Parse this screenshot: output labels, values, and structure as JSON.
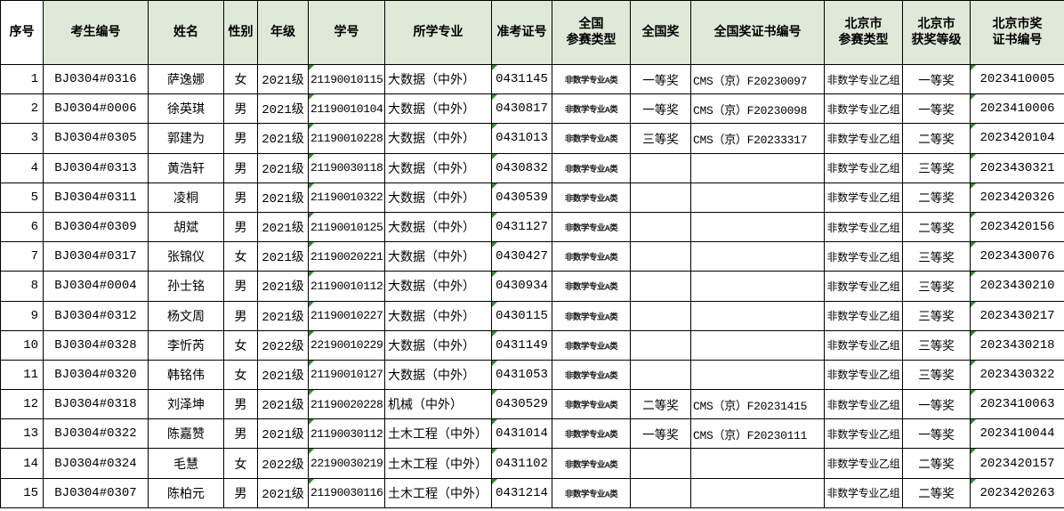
{
  "table": {
    "header_bg": "#dfe9d8",
    "marker_color": "#2e8b2e",
    "columns": [
      {
        "name": "serial",
        "label": "序号"
      },
      {
        "name": "candidate-id",
        "label": "考生编号"
      },
      {
        "name": "name",
        "label": "姓名"
      },
      {
        "name": "gender",
        "label": "性别"
      },
      {
        "name": "grade",
        "label": "年级"
      },
      {
        "name": "student-id",
        "label": "学号"
      },
      {
        "name": "major",
        "label": "所学专业"
      },
      {
        "name": "ticket-no",
        "label": "准考证号"
      },
      {
        "name": "national-type",
        "label": "全国\n参赛类型"
      },
      {
        "name": "national-award",
        "label": "全国奖"
      },
      {
        "name": "national-cert-no",
        "label": "全国奖证书编号"
      },
      {
        "name": "beijing-type",
        "label": "北京市\n参赛类型"
      },
      {
        "name": "beijing-award",
        "label": "北京市\n获奖等级"
      },
      {
        "name": "beijing-cert-no",
        "label": "北京市奖\n证书编号"
      }
    ],
    "text_format_marker_columns": [
      "student-id",
      "ticket-no",
      "beijing-cert-no"
    ],
    "rows": [
      [
        "1",
        "BJ0304#0316",
        "萨逸娜",
        "女",
        "2021级",
        "21190010115",
        "大数据（中外）",
        "0431145",
        "非数学专业A类",
        "一等奖",
        "CMS（京）F20230097",
        "非数学专业乙组",
        "一等奖",
        "2023410005"
      ],
      [
        "2",
        "BJ0304#0006",
        "徐英琪",
        "男",
        "2021级",
        "21190010104",
        "大数据（中外）",
        "0430817",
        "非数学专业A类",
        "一等奖",
        "CMS（京）F20230098",
        "非数学专业乙组",
        "一等奖",
        "2023410006"
      ],
      [
        "3",
        "BJ0304#0305",
        "郭建为",
        "男",
        "2021级",
        "21190010228",
        "大数据（中外）",
        "0431013",
        "非数学专业A类",
        "三等奖",
        "CMS（京）F20233317",
        "非数学专业乙组",
        "二等奖",
        "2023420104"
      ],
      [
        "4",
        "BJ0304#0313",
        "黄浩轩",
        "男",
        "2021级",
        "21190030118",
        "大数据（中外）",
        "0430832",
        "非数学专业A类",
        "",
        "",
        "非数学专业乙组",
        "三等奖",
        "2023430321"
      ],
      [
        "5",
        "BJ0304#0311",
        "凌桐",
        "男",
        "2021级",
        "21190010322",
        "大数据（中外）",
        "0430539",
        "非数学专业A类",
        "",
        "",
        "非数学专业乙组",
        "二等奖",
        "2023420326"
      ],
      [
        "6",
        "BJ0304#0309",
        "胡斌",
        "男",
        "2021级",
        "21190010125",
        "大数据（中外）",
        "0431127",
        "非数学专业A类",
        "",
        "",
        "非数学专业乙组",
        "二等奖",
        "2023420156"
      ],
      [
        "7",
        "BJ0304#0317",
        "张锦仪",
        "女",
        "2021级",
        "21190020221",
        "大数据（中外）",
        "0430427",
        "非数学专业A类",
        "",
        "",
        "非数学专业乙组",
        "三等奖",
        "2023430076"
      ],
      [
        "8",
        "BJ0304#0004",
        "孙士铭",
        "男",
        "2021级",
        "21190010112",
        "大数据（中外）",
        "0430934",
        "非数学专业A类",
        "",
        "",
        "非数学专业乙组",
        "三等奖",
        "2023430210"
      ],
      [
        "9",
        "BJ0304#0312",
        "杨文周",
        "男",
        "2021级",
        "21190010227",
        "大数据（中外）",
        "0430115",
        "非数学专业A类",
        "",
        "",
        "非数学专业乙组",
        "三等奖",
        "2023430217"
      ],
      [
        "10",
        "BJ0304#0328",
        "李忻芮",
        "女",
        "2022级",
        "22190010229",
        "大数据（中外）",
        "0431149",
        "非数学专业A类",
        "",
        "",
        "非数学专业乙组",
        "三等奖",
        "2023430218"
      ],
      [
        "11",
        "BJ0304#0320",
        "韩铭伟",
        "女",
        "2021级",
        "21190010127",
        "大数据（中外）",
        "0431053",
        "非数学专业A类",
        "",
        "",
        "非数学专业乙组",
        "三等奖",
        "2023430322"
      ],
      [
        "12",
        "BJ0304#0318",
        "刘泽坤",
        "男",
        "2021级",
        "21190020228",
        "机械（中外）",
        "0430529",
        "非数学专业A类",
        "二等奖",
        "CMS（京）F20231415",
        "非数学专业乙组",
        "一等奖",
        "2023410063"
      ],
      [
        "13",
        "BJ0304#0322",
        "陈嘉赞",
        "男",
        "2021级",
        "21190030112",
        "土木工程（中外）",
        "0431014",
        "非数学专业A类",
        "一等奖",
        "CMS（京）F20230111",
        "非数学专业乙组",
        "一等奖",
        "2023410044"
      ],
      [
        "14",
        "BJ0304#0324",
        "毛慧",
        "女",
        "2022级",
        "22190030219",
        "土木工程（中外）",
        "0431102",
        "非数学专业A类",
        "",
        "",
        "非数学专业乙组",
        "二等奖",
        "2023420157"
      ],
      [
        "15",
        "BJ0304#0307",
        "陈柏元",
        "男",
        "2021级",
        "21190030116",
        "土木工程（中外）",
        "0431214",
        "非数学专业A类",
        "",
        "",
        "非数学专业乙组",
        "二等奖",
        "2023420263"
      ]
    ]
  }
}
